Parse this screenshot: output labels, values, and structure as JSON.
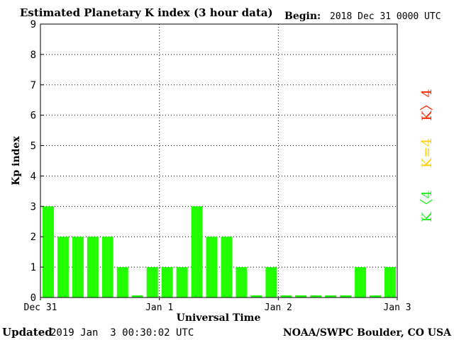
{
  "header": {
    "title": "Estimated Planetary K index (3 hour data)",
    "begin_label": "Begin:",
    "begin_value": "2018 Dec 31 0000 UTC"
  },
  "footer": {
    "updated_label": "Updated",
    "updated_value": "2019 Jan  3 00:30:02 UTC",
    "source": "NOAA/SWPC Boulder, CO USA"
  },
  "legend": {
    "above": "K〉4",
    "equal": "K=4",
    "below": "K〈4",
    "colors": {
      "above": "#ff2a00",
      "equal": "#ffd000",
      "below": "#22ee22"
    }
  },
  "chart_data": {
    "type": "bar",
    "ylabel": "Kp index",
    "xlabel": "Universal Time",
    "ylim": [
      0,
      9
    ],
    "yticks": [
      "0",
      "1",
      "2",
      "3",
      "4",
      "5",
      "6",
      "7",
      "8",
      "9"
    ],
    "x_ticks": [
      "Dec 31",
      "Jan 1",
      "Jan 2",
      "Jan 3"
    ],
    "grid": true,
    "bar_color": "#22ff00",
    "values": [
      3,
      2,
      2,
      2,
      2,
      1,
      0,
      1,
      1,
      1,
      3,
      2,
      2,
      1,
      0,
      1,
      0,
      0,
      0,
      0,
      0,
      1,
      0,
      1
    ]
  }
}
